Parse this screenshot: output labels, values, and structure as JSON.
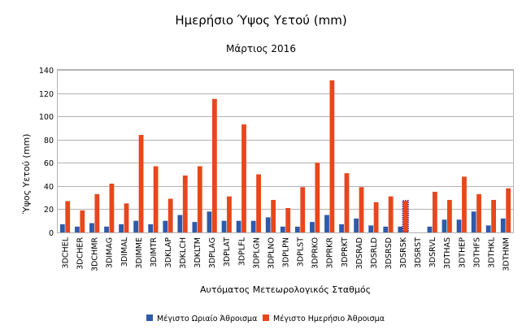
{
  "chart_data": {
    "type": "bar",
    "title": "Ημερήσιο Ύψος Υετού (mm)",
    "subtitle": "Μάρτιος 2016",
    "xlabel": "Αυτόματος Μετεωρολογικός Σταθμός",
    "ylabel": "Ύψος Υετού (mm)",
    "ylim": [
      0,
      140
    ],
    "yticks": [
      0,
      20,
      40,
      60,
      80,
      100,
      120,
      140
    ],
    "grid": true,
    "legend_position": "bottom",
    "categories": [
      "3DCHEL",
      "3DCHER",
      "3DCHMR",
      "3DIMAG",
      "3DIMAL",
      "3DIMME",
      "3DIMTR",
      "3DKLAP",
      "3DKLCH",
      "3DKLTM",
      "3DPLAG",
      "3DPLAT",
      "3DPLFL",
      "3DPLGN",
      "3DPLNO",
      "3DPLPN",
      "3DPLST",
      "3DPRKO",
      "3DPRKR",
      "3DPRKT",
      "3DSRAD",
      "3DSRLD",
      "3DSRSD",
      "3DSRSK",
      "3DSRST",
      "3DSRVL",
      "3DTHAS",
      "3DTHEP",
      "3DTHFS",
      "3DTHKL",
      "3DTHNM"
    ],
    "series": [
      {
        "name": "Μέγιστο Ωριαίο Άθροισμα",
        "color": "#2e5aa8",
        "values": [
          7,
          5,
          8,
          5,
          7,
          10,
          7,
          10,
          15,
          9,
          18,
          10,
          10,
          10,
          13,
          5,
          5,
          9,
          15,
          7,
          12,
          6,
          5,
          5,
          null,
          5,
          11,
          11,
          18,
          6,
          12
        ]
      },
      {
        "name": "Μέγιστο Ημερήσιο Άθροισμα",
        "color": "#e8471d",
        "values": [
          27,
          19,
          33,
          42,
          25,
          84,
          57,
          29,
          49,
          57,
          115,
          31,
          93,
          50,
          28,
          21,
          39,
          60,
          131,
          51,
          39,
          26,
          31,
          27,
          null,
          35,
          28,
          48,
          33,
          28,
          38
        ]
      }
    ],
    "highlight": {
      "category": "3DSRSK",
      "series": "Μέγιστο Ημερήσιο Άθροισμα",
      "color": "#6a1b6a"
    }
  }
}
